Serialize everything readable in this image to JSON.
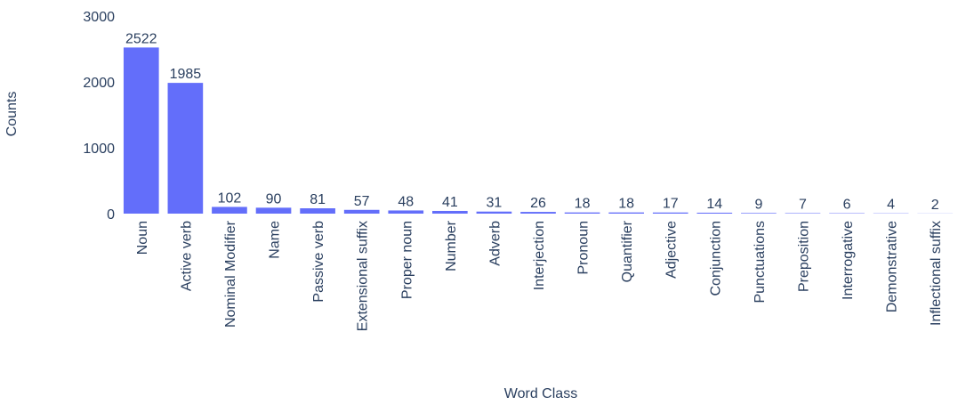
{
  "chart_data": {
    "type": "bar",
    "x_label": "Word Class",
    "y_label": "Counts",
    "categories": [
      "Noun",
      "Active verb",
      "Nominal Modifier",
      "Name",
      "Passive verb",
      "Extensional suffix",
      "Proper noun",
      "Number",
      "Adverb",
      "Interjection",
      "Pronoun",
      "Quantifier",
      "Adjective",
      "Conjunction",
      "Punctuations",
      "Preposition",
      "Interrogative",
      "Demonstrative",
      "Inflectional suffix"
    ],
    "values": [
      2522,
      1985,
      102,
      90,
      81,
      57,
      48,
      41,
      31,
      26,
      18,
      18,
      17,
      14,
      9,
      7,
      6,
      4,
      2
    ],
    "color": "#636efa",
    "ylim": [
      0,
      3000
    ],
    "yticks": [
      0,
      1000,
      2000,
      3000
    ]
  }
}
